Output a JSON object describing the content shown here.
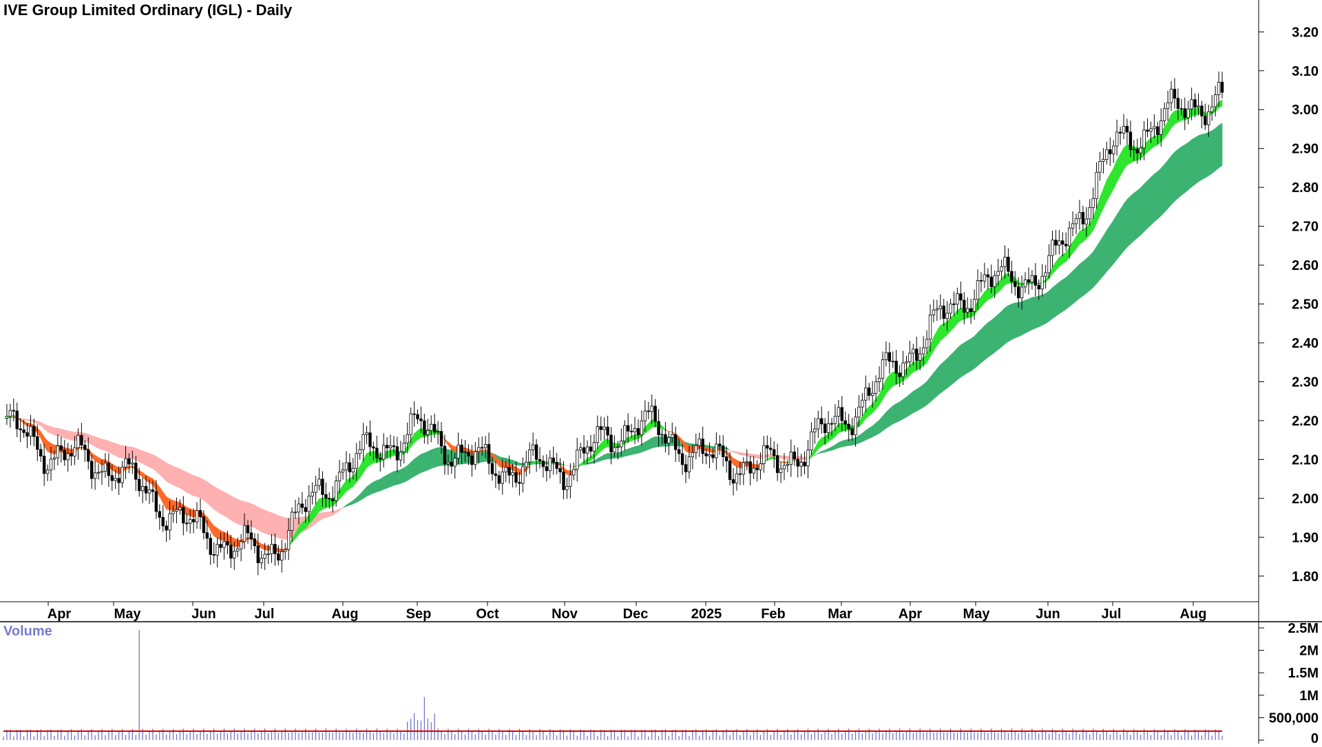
{
  "title": "IVE Group Limited Ordinary (IGL) - Daily",
  "volume_label": "Volume",
  "colors": {
    "candle": "#000000",
    "short_band_up": "#2ee62e",
    "short_band_down": "#ff6a2a",
    "long_band_up": "#3cb371",
    "long_band_down": "#ff7b7b",
    "long_band_down_light": "#ffb0b0",
    "volume_bar": "#6a6ac8",
    "volume_avg": "#e00000",
    "volume_label": "#7b7bc9"
  },
  "chart_data": [
    {
      "type": "candlestick",
      "title": "IVE Group Limited Ordinary (IGL) - Daily",
      "y_tick_labels": [
        "3.20",
        "3.10",
        "3.00",
        "2.90",
        "2.80",
        "2.70",
        "2.60",
        "2.50",
        "2.40",
        "2.30",
        "2.20",
        "2.10",
        "2.00",
        "1.90",
        "1.80"
      ],
      "ylim": [
        1.75,
        3.22
      ],
      "x_tick_labels": [
        "Apr",
        "May",
        "Jun",
        "Jul",
        "Aug",
        "Sep",
        "Oct",
        "Nov",
        "Dec",
        "2025",
        "Feb",
        "Mar",
        "Apr",
        "May",
        "Jun",
        "Jul",
        "Aug"
      ],
      "series": [
        {
          "name": "",
          "kind": "close_path",
          "x": [
            "Mar",
            "Apr",
            "May",
            "Jun",
            "Jul",
            "Aug",
            "Sep",
            "Oct",
            "Nov",
            "Dec",
            "2025",
            "Feb",
            "Mar",
            "Apr",
            "May",
            "Jun",
            "Jul",
            "Aug"
          ],
          "values": [
            2.2,
            2.12,
            2.08,
            1.92,
            1.85,
            2.08,
            2.18,
            2.08,
            2.08,
            2.2,
            2.1,
            2.08,
            2.2,
            2.38,
            2.55,
            2.58,
            2.9,
            3.02
          ]
        }
      ],
      "grid": false
    },
    {
      "type": "bar",
      "title": "Volume",
      "y_tick_labels": [
        "2.5M",
        "2M",
        "1.5M",
        "1M",
        "500,000",
        "0"
      ],
      "ylim": [
        0,
        2500000
      ],
      "peak_volume": 2450000,
      "average_volume": 200000,
      "grid": false
    }
  ]
}
